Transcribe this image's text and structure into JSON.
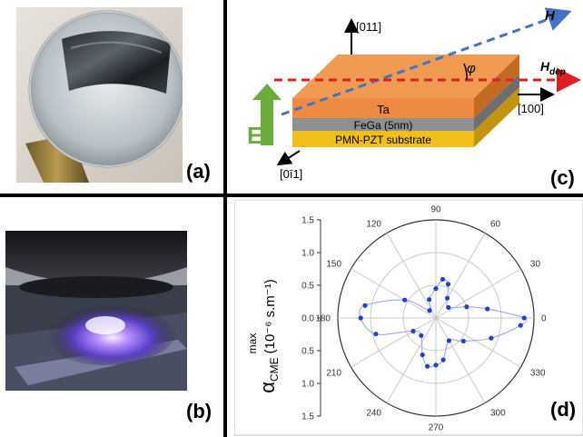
{
  "panels": {
    "a": {
      "label": "(a)"
    },
    "b": {
      "label": "(b)"
    },
    "c": {
      "label": "(c)"
    },
    "d": {
      "label": "(d)"
    }
  },
  "diagram_c": {
    "axis_up": "[011]",
    "axis_right": "[100]",
    "axis_front": "[0ī1]",
    "field_H": "H",
    "field_Hdep": "H",
    "field_Hdep_sub": "dep",
    "angle": "φ",
    "e_field": "E",
    "layers": [
      "Ta",
      "FeGa (5nm)",
      "PMN-PZT substrate"
    ],
    "colors": {
      "ta": "#ee8a42",
      "fega": "#8f8f8f",
      "substrate": "#f2be1a",
      "h_arrow": "#4472c4",
      "hdep_arrow": "#e02020",
      "e_arrow": "#6aab3c"
    }
  },
  "chart_data": {
    "type": "polar",
    "radial_axis_label": "α",
    "radial_axis_label_sub": "CME",
    "radial_axis_label_sup": "max",
    "radial_axis_unit": "(10⁻⁶ s.m⁻¹)",
    "radial_ticks": [
      "1.5",
      "1.0",
      "0.5",
      "0.0",
      "0.5",
      "1.0",
      "1.5"
    ],
    "rlim": [
      0,
      1.5
    ],
    "angle_ticks": [
      0,
      30,
      60,
      90,
      120,
      150,
      180,
      210,
      240,
      270,
      300,
      330
    ],
    "grid": true,
    "series_color": "#1f3fd8",
    "points": [
      {
        "angle": 0,
        "r": 1.35
      },
      {
        "angle": 10,
        "r": 0.8
      },
      {
        "angle": 20,
        "r": 0.5
      },
      {
        "angle": 40,
        "r": 0.25
      },
      {
        "angle": 60,
        "r": 0.35
      },
      {
        "angle": 70,
        "r": 0.55
      },
      {
        "angle": 80,
        "r": 0.6
      },
      {
        "angle": 90,
        "r": 0.45
      },
      {
        "angle": 110,
        "r": 0.3
      },
      {
        "angle": 130,
        "r": 0.15
      },
      {
        "angle": 150,
        "r": 0.55
      },
      {
        "angle": 170,
        "r": 1.1
      },
      {
        "angle": 180,
        "r": 1.15
      },
      {
        "angle": 195,
        "r": 0.95
      },
      {
        "angle": 210,
        "r": 0.4
      },
      {
        "angle": 230,
        "r": 0.35
      },
      {
        "angle": 250,
        "r": 0.6
      },
      {
        "angle": 260,
        "r": 0.75
      },
      {
        "angle": 270,
        "r": 0.72
      },
      {
        "angle": 280,
        "r": 0.65
      },
      {
        "angle": 300,
        "r": 0.4
      },
      {
        "angle": 320,
        "r": 0.55
      },
      {
        "angle": 340,
        "r": 0.9
      },
      {
        "angle": 355,
        "r": 1.3
      }
    ]
  }
}
